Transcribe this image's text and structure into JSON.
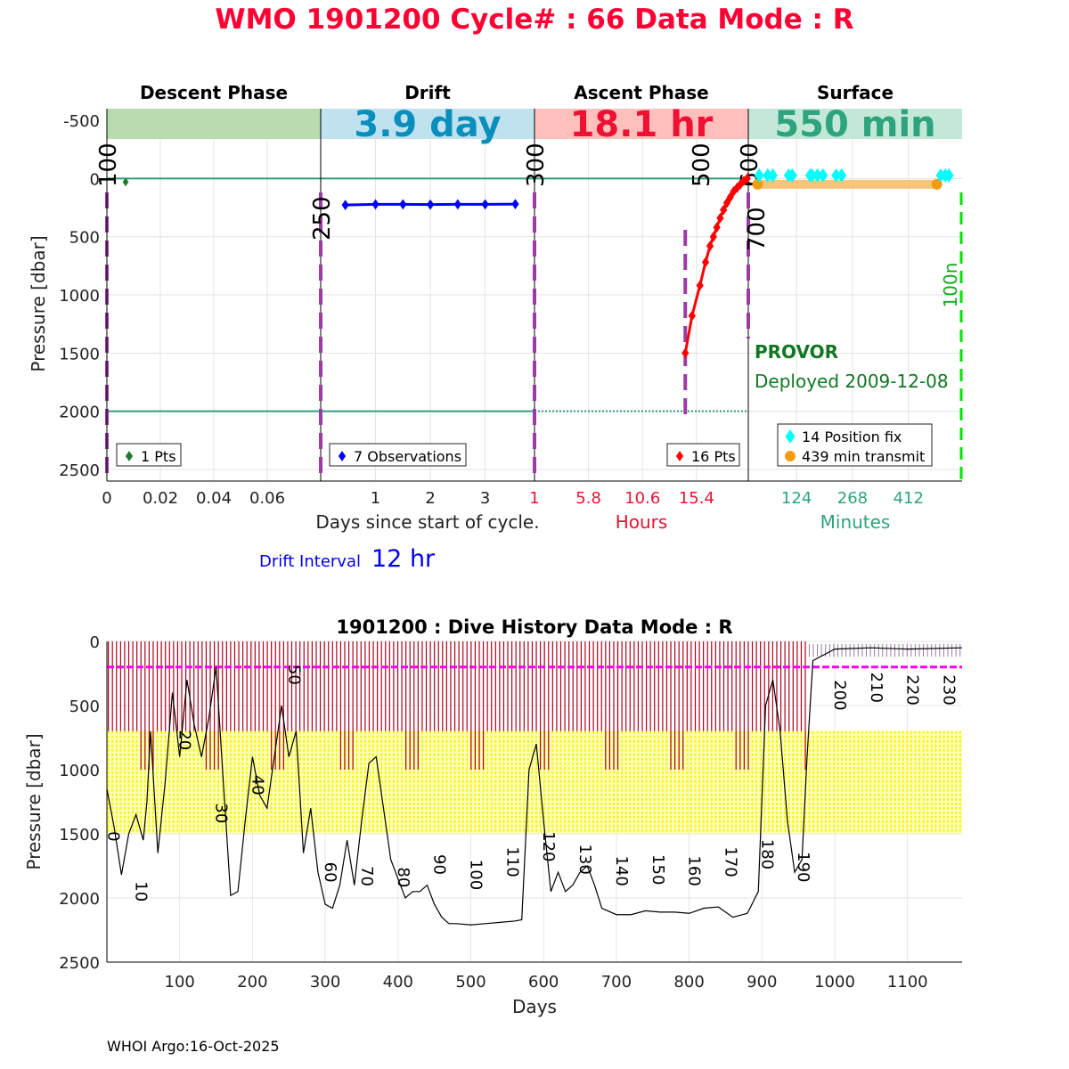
{
  "header": {
    "title": "WMO 1901200   Cycle# : 66   Data Mode : R",
    "footer": "WHOI Argo:16-Oct-2025"
  },
  "drift_interval": {
    "label": "Drift Interval",
    "value": "12 hr"
  },
  "colors": {
    "title": "#ff0033",
    "descent_band": "#b9dcae",
    "drift_band": "#bfe2ee",
    "ascent_band": "#ffc0bc",
    "surface_band": "#c3e8d8",
    "drift_text": "#0a8fbd",
    "ascent_text": "#ee1133",
    "surface_text": "#2da37e",
    "phase_line": "#9b3ba3",
    "teal_line": "#2f9f7e",
    "descent_pts": "#1e7a2e",
    "drift_pts": "#0000ff",
    "ascent_pts": "#ff0000",
    "position_fix": "#00ffff",
    "transmit": "#f39c12",
    "transmit_line": "#f7c57a",
    "green_dash": "#00e600",
    "history_red": "#b0001a",
    "history_yellow": "#f5f500",
    "history_magenta": "#ff00ff"
  },
  "chart_data": [
    {
      "id": "cycle",
      "type": "line",
      "ylabel": "Pressure [dbar]",
      "ylim": [
        2600,
        -600
      ],
      "yticks": [
        -500,
        0,
        500,
        1000,
        1500,
        2000,
        2500
      ],
      "ytick_labels": [
        "-500",
        "0",
        "500",
        "1000",
        "1500",
        "2000",
        "2500"
      ],
      "reference_depths": [
        0,
        2000
      ],
      "phases": [
        {
          "name": "Descent Phase",
          "band_text": ""
        },
        {
          "name": "Drift",
          "band_text": "3.9 day"
        },
        {
          "name": "Ascent Phase",
          "band_text": "18.1 hr"
        },
        {
          "name": "Surface",
          "band_text": "550 min"
        }
      ],
      "descent": {
        "xlim": [
          0,
          0.08
        ],
        "xticks": [
          0,
          0.02,
          0.04,
          0.06
        ],
        "xtick_labels": [
          "0",
          "0.02",
          "0.04",
          "0.06"
        ],
        "points": [
          [
            0.004,
            15
          ]
        ],
        "legend": "1 Pts"
      },
      "drift": {
        "xlim": [
          0,
          3.9
        ],
        "xticks": [
          1,
          2,
          3
        ],
        "xtick_labels": [
          "1",
          "2",
          "3"
        ],
        "points": [
          [
            0.45,
            228
          ],
          [
            1.0,
            222
          ],
          [
            1.5,
            222
          ],
          [
            2.0,
            224
          ],
          [
            2.5,
            222
          ],
          [
            3.0,
            222
          ],
          [
            3.55,
            220
          ]
        ],
        "legend": "7 Observations"
      },
      "ascent": {
        "xlim": [
          1,
          20
        ],
        "xticks": [
          1,
          5.8,
          10.6,
          15.4
        ],
        "xtick_labels": [
          "1",
          "5.8",
          "10.6",
          "15.4"
        ],
        "points": [
          [
            14.4,
            1500
          ],
          [
            15.0,
            1180
          ],
          [
            15.7,
            920
          ],
          [
            16.2,
            720
          ],
          [
            16.6,
            580
          ],
          [
            16.9,
            500
          ],
          [
            17.2,
            420
          ],
          [
            17.5,
            340
          ],
          [
            17.8,
            270
          ],
          [
            18.1,
            210
          ],
          [
            18.4,
            160
          ],
          [
            18.7,
            110
          ],
          [
            19.0,
            80
          ],
          [
            19.3,
            50
          ],
          [
            19.6,
            20
          ],
          [
            19.9,
            0
          ]
        ],
        "legend": "16 Pts"
      },
      "surface": {
        "xlim": [
          0,
          550
        ],
        "xticks": [
          124,
          268,
          412
        ],
        "xtick_labels": [
          "124",
          "268",
          "412"
        ],
        "position_fixes": [
          [
            28,
            -50
          ],
          [
            50,
            -50
          ],
          [
            63,
            -50
          ],
          [
            104,
            -50
          ],
          [
            113,
            -50
          ],
          [
            159,
            -50
          ],
          [
            164,
            -50
          ],
          [
            178,
            -50
          ],
          [
            192,
            -50
          ],
          [
            226,
            -50
          ],
          [
            240,
            -50
          ],
          [
            495,
            -50
          ],
          [
            507,
            -50
          ],
          [
            516,
            -50
          ]
        ],
        "transmit": [
          [
            24,
            50
          ],
          [
            485,
            50
          ]
        ],
        "legend_fix": "14 Position fix",
        "legend_transmit": "439 min transmit"
      },
      "xlabels": {
        "days": "Days since start of cycle.",
        "hours": "Hours",
        "minutes": "Minutes"
      },
      "vertical_labels": [
        {
          "text": "100",
          "at": "descent-start"
        },
        {
          "text": "250",
          "at": "drift-start"
        },
        {
          "text": "300",
          "at": "ascent-start"
        },
        {
          "text": "500",
          "at": "ascent-bottom"
        },
        {
          "text": "600",
          "at": "surface-start"
        },
        {
          "text": "700",
          "at": "surface-start-low"
        },
        {
          "text": "100n",
          "at": "surface-end"
        }
      ],
      "annotations": {
        "float_type": "PROVOR",
        "deployed": "Deployed 2009-12-08"
      }
    },
    {
      "id": "history",
      "type": "line",
      "title": "1901200 : Dive History      Data Mode : R",
      "xlabel": "Days",
      "ylabel": "Pressure [dbar]",
      "xlim": [
        0,
        1175
      ],
      "ylim": [
        2500,
        0
      ],
      "xticks": [
        100,
        200,
        300,
        400,
        500,
        600,
        700,
        800,
        900,
        1000,
        1100
      ],
      "yticks": [
        0,
        500,
        1000,
        1500,
        2000,
        2500
      ],
      "profile_depth": [
        [
          0,
          1150
        ],
        [
          10,
          1450
        ],
        [
          20,
          1820
        ],
        [
          30,
          1500
        ],
        [
          40,
          1350
        ],
        [
          50,
          1550
        ],
        [
          55,
          1250
        ],
        [
          60,
          700
        ],
        [
          70,
          1650
        ],
        [
          80,
          1100
        ],
        [
          90,
          400
        ],
        [
          100,
          900
        ],
        [
          110,
          300
        ],
        [
          120,
          650
        ],
        [
          130,
          900
        ],
        [
          140,
          600
        ],
        [
          150,
          200
        ],
        [
          160,
          1100
        ],
        [
          170,
          1980
        ],
        [
          180,
          1950
        ],
        [
          190,
          1400
        ],
        [
          200,
          900
        ],
        [
          210,
          1200
        ],
        [
          220,
          1300
        ],
        [
          230,
          900
        ],
        [
          240,
          500
        ],
        [
          250,
          900
        ],
        [
          260,
          700
        ],
        [
          270,
          1650
        ],
        [
          280,
          1300
        ],
        [
          290,
          1800
        ],
        [
          300,
          2050
        ],
        [
          310,
          2080
        ],
        [
          320,
          1900
        ],
        [
          330,
          1550
        ],
        [
          340,
          1900
        ],
        [
          350,
          1400
        ],
        [
          360,
          950
        ],
        [
          370,
          900
        ],
        [
          380,
          1300
        ],
        [
          390,
          1700
        ],
        [
          400,
          1850
        ],
        [
          410,
          2000
        ],
        [
          420,
          1950
        ],
        [
          430,
          1950
        ],
        [
          440,
          1900
        ],
        [
          450,
          2050
        ],
        [
          460,
          2150
        ],
        [
          470,
          2200
        ],
        [
          480,
          2200
        ],
        [
          500,
          2210
        ],
        [
          520,
          2200
        ],
        [
          540,
          2190
        ],
        [
          560,
          2180
        ],
        [
          570,
          2170
        ],
        [
          580,
          1000
        ],
        [
          590,
          800
        ],
        [
          600,
          1400
        ],
        [
          610,
          1950
        ],
        [
          620,
          1800
        ],
        [
          630,
          1950
        ],
        [
          640,
          1900
        ],
        [
          650,
          1800
        ],
        [
          660,
          1750
        ],
        [
          670,
          1900
        ],
        [
          680,
          2080
        ],
        [
          700,
          2130
        ],
        [
          720,
          2130
        ],
        [
          740,
          2100
        ],
        [
          760,
          2110
        ],
        [
          780,
          2110
        ],
        [
          800,
          2120
        ],
        [
          820,
          2080
        ],
        [
          840,
          2070
        ],
        [
          860,
          2150
        ],
        [
          880,
          2120
        ],
        [
          895,
          1950
        ],
        [
          905,
          500
        ],
        [
          915,
          300
        ],
        [
          925,
          700
        ],
        [
          935,
          1400
        ],
        [
          945,
          1800
        ],
        [
          955,
          1700
        ],
        [
          962,
          900
        ],
        [
          970,
          150
        ],
        [
          1000,
          60
        ],
        [
          1050,
          50
        ],
        [
          1100,
          60
        ],
        [
          1175,
          50
        ]
      ],
      "drift_depth": [
        [
          0,
          200
        ],
        [
          1175,
          200
        ]
      ],
      "ascent_start_depth": [
        [
          0,
          700
        ],
        [
          1175,
          700
        ]
      ],
      "yellow_range": [
        700,
        1500
      ],
      "cycle_labels": [
        {
          "text": "0",
          "day": 2,
          "depth": 1480
        },
        {
          "text": "10",
          "day": 40,
          "depth": 1870
        },
        {
          "text": "20",
          "day": 100,
          "depth": 690
        },
        {
          "text": "30",
          "day": 150,
          "depth": 1260
        },
        {
          "text": "40",
          "day": 200,
          "depth": 1040
        },
        {
          "text": "50",
          "day": 250,
          "depth": 180
        },
        {
          "text": "60",
          "day": 300,
          "depth": 1720
        },
        {
          "text": "70",
          "day": 350,
          "depth": 1750
        },
        {
          "text": "80",
          "day": 400,
          "depth": 1760
        },
        {
          "text": "90",
          "day": 450,
          "depth": 1660
        },
        {
          "text": "100",
          "day": 500,
          "depth": 1700
        },
        {
          "text": "110",
          "day": 550,
          "depth": 1600
        },
        {
          "text": "120",
          "day": 600,
          "depth": 1480
        },
        {
          "text": "130",
          "day": 650,
          "depth": 1580
        },
        {
          "text": "140",
          "day": 700,
          "depth": 1670
        },
        {
          "text": "150",
          "day": 750,
          "depth": 1660
        },
        {
          "text": "160",
          "day": 800,
          "depth": 1670
        },
        {
          "text": "170",
          "day": 850,
          "depth": 1600
        },
        {
          "text": "180",
          "day": 900,
          "depth": 1540
        },
        {
          "text": "190",
          "day": 950,
          "depth": 1640
        },
        {
          "text": "200",
          "day": 1000,
          "depth": 300
        },
        {
          "text": "210",
          "day": 1050,
          "depth": 240
        },
        {
          "text": "220",
          "day": 1100,
          "depth": 260
        },
        {
          "text": "230",
          "day": 1150,
          "depth": 260
        }
      ]
    }
  ]
}
